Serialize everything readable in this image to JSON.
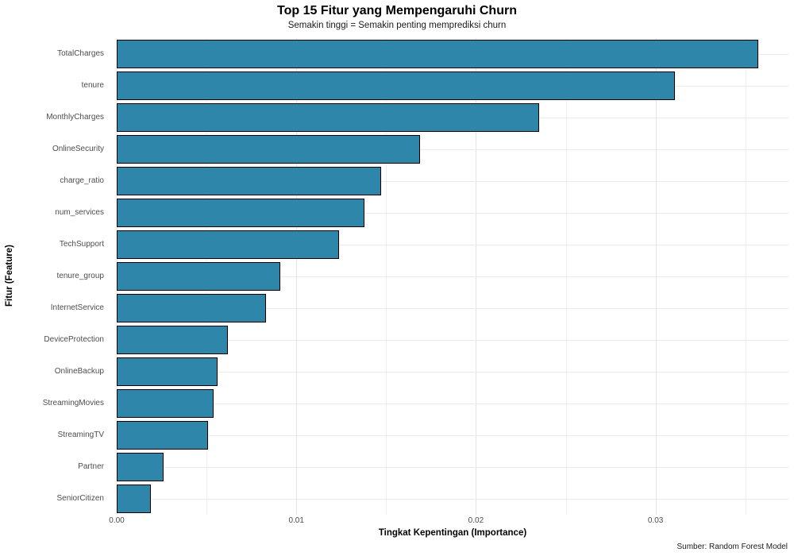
{
  "chart_data": {
    "type": "bar",
    "orientation": "horizontal",
    "title": "Top 15 Fitur yang Mempengaruhi Churn",
    "subtitle": "Semakin tinggi = Semakin penting memprediksi churn",
    "xlabel": "Tingkat Kepentingan (Importance)",
    "ylabel": "Fitur (Feature)",
    "caption": "Sumber: Random Forest Model",
    "categories": [
      "TotalCharges",
      "tenure",
      "MonthlyCharges",
      "OnlineSecurity",
      "charge_ratio",
      "num_services",
      "TechSupport",
      "tenure_group",
      "InternetService",
      "DeviceProtection",
      "OnlineBackup",
      "StreamingMovies",
      "StreamingTV",
      "Partner",
      "SeniorCitizen"
    ],
    "values": [
      0.0357,
      0.0311,
      0.0235,
      0.0169,
      0.0147,
      0.0138,
      0.0124,
      0.0091,
      0.0083,
      0.0062,
      0.0056,
      0.0054,
      0.0051,
      0.0026,
      0.0019
    ],
    "xlim": [
      0,
      0.0374
    ],
    "x_ticks": [
      {
        "label": "0.00",
        "value": 0.0
      },
      {
        "label": "0.01",
        "value": 0.01
      },
      {
        "label": "0.02",
        "value": 0.02
      },
      {
        "label": "0.03",
        "value": 0.03
      }
    ],
    "x_minor_gridlines": [
      0.005,
      0.015,
      0.025,
      0.035
    ],
    "grid": true,
    "legend": "none",
    "bar_color": "#2e86ab",
    "bar_border_color": "#000000"
  }
}
